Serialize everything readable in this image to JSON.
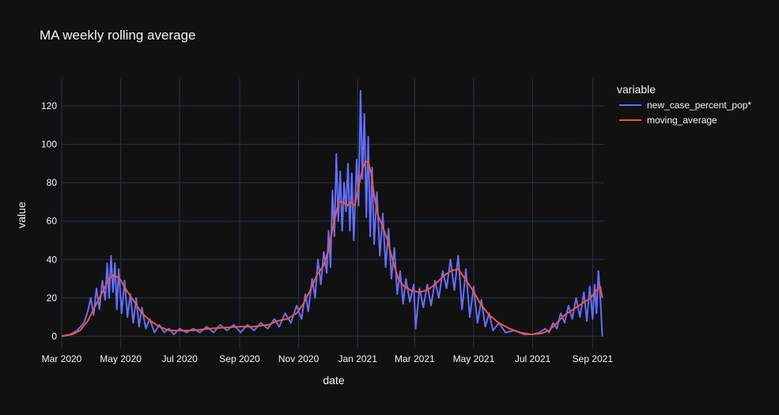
{
  "chart_data": {
    "type": "line",
    "title": "MA weekly rolling average",
    "xlabel": "date",
    "ylabel": "value",
    "xlim": [
      "2020-03-01",
      "2021-09-13"
    ],
    "ylim": [
      -6,
      134
    ],
    "x_ticks": [
      "2020-03-01",
      "2020-05-01",
      "2020-07-01",
      "2020-09-01",
      "2020-11-01",
      "2021-01-01",
      "2021-03-01",
      "2021-05-01",
      "2021-07-01",
      "2021-09-01"
    ],
    "x_tick_labels": [
      "Mar 2020",
      "May 2020",
      "Jul 2020",
      "Sep 2020",
      "Nov 2020",
      "Jan 2021",
      "Mar 2021",
      "May 2021",
      "Jul 2021",
      "Sep 2021"
    ],
    "y_ticks": [
      0,
      20,
      40,
      60,
      80,
      100,
      120
    ],
    "y_tick_labels": [
      "0",
      "20",
      "40",
      "60",
      "80",
      "100",
      "120"
    ],
    "grid": true,
    "legend": {
      "title": "variable",
      "position": "top-right"
    },
    "series": [
      {
        "name": "new_case_percent_pop*",
        "color": "#636efa",
        "points": [
          [
            "2020-03-01",
            0
          ],
          [
            "2020-03-10",
            1
          ],
          [
            "2020-03-17",
            3
          ],
          [
            "2020-03-24",
            7
          ],
          [
            "2020-03-28",
            13
          ],
          [
            "2020-03-31",
            20
          ],
          [
            "2020-04-03",
            11
          ],
          [
            "2020-04-06",
            25
          ],
          [
            "2020-04-09",
            14
          ],
          [
            "2020-04-12",
            29
          ],
          [
            "2020-04-15",
            19
          ],
          [
            "2020-04-17",
            38
          ],
          [
            "2020-04-19",
            20
          ],
          [
            "2020-04-21",
            42
          ],
          [
            "2020-04-23",
            23
          ],
          [
            "2020-04-25",
            38
          ],
          [
            "2020-04-27",
            14
          ],
          [
            "2020-04-29",
            35
          ],
          [
            "2020-05-02",
            12
          ],
          [
            "2020-05-05",
            29
          ],
          [
            "2020-05-08",
            10
          ],
          [
            "2020-05-11",
            22
          ],
          [
            "2020-05-14",
            7
          ],
          [
            "2020-05-17",
            20
          ],
          [
            "2020-05-20",
            5
          ],
          [
            "2020-05-23",
            15
          ],
          [
            "2020-05-27",
            4
          ],
          [
            "2020-05-31",
            9
          ],
          [
            "2020-06-05",
            2
          ],
          [
            "2020-06-10",
            6
          ],
          [
            "2020-06-15",
            2
          ],
          [
            "2020-06-20",
            4
          ],
          [
            "2020-06-25",
            1
          ],
          [
            "2020-07-01",
            4
          ],
          [
            "2020-07-08",
            2
          ],
          [
            "2020-07-15",
            4
          ],
          [
            "2020-07-22",
            2
          ],
          [
            "2020-07-29",
            5
          ],
          [
            "2020-08-05",
            2
          ],
          [
            "2020-08-12",
            6
          ],
          [
            "2020-08-19",
            3
          ],
          [
            "2020-08-26",
            6
          ],
          [
            "2020-09-02",
            2
          ],
          [
            "2020-09-09",
            6
          ],
          [
            "2020-09-16",
            3
          ],
          [
            "2020-09-23",
            7
          ],
          [
            "2020-09-30",
            4
          ],
          [
            "2020-10-07",
            9
          ],
          [
            "2020-10-12",
            5
          ],
          [
            "2020-10-18",
            12
          ],
          [
            "2020-10-24",
            7
          ],
          [
            "2020-10-30",
            16
          ],
          [
            "2020-11-04",
            9
          ],
          [
            "2020-11-08",
            22
          ],
          [
            "2020-11-11",
            13
          ],
          [
            "2020-11-15",
            30
          ],
          [
            "2020-11-18",
            20
          ],
          [
            "2020-11-21",
            40
          ],
          [
            "2020-11-24",
            27
          ],
          [
            "2020-11-27",
            44
          ],
          [
            "2020-11-30",
            33
          ],
          [
            "2020-12-02",
            55
          ],
          [
            "2020-12-04",
            36
          ],
          [
            "2020-12-06",
            76
          ],
          [
            "2020-12-08",
            52
          ],
          [
            "2020-12-10",
            95
          ],
          [
            "2020-12-12",
            60
          ],
          [
            "2020-12-14",
            86
          ],
          [
            "2020-12-16",
            55
          ],
          [
            "2020-12-18",
            80
          ],
          [
            "2020-12-20",
            65
          ],
          [
            "2020-12-22",
            90
          ],
          [
            "2020-12-24",
            55
          ],
          [
            "2020-12-26",
            85
          ],
          [
            "2020-12-28",
            50
          ],
          [
            "2020-12-31",
            92
          ],
          [
            "2021-01-02",
            68
          ],
          [
            "2021-01-04",
            128
          ],
          [
            "2021-01-06",
            82
          ],
          [
            "2021-01-08",
            116
          ],
          [
            "2021-01-10",
            62
          ],
          [
            "2021-01-12",
            104
          ],
          [
            "2021-01-14",
            52
          ],
          [
            "2021-01-16",
            88
          ],
          [
            "2021-01-18",
            48
          ],
          [
            "2021-01-21",
            75
          ],
          [
            "2021-01-24",
            42
          ],
          [
            "2021-01-27",
            64
          ],
          [
            "2021-01-30",
            36
          ],
          [
            "2021-02-02",
            56
          ],
          [
            "2021-02-05",
            30
          ],
          [
            "2021-02-08",
            46
          ],
          [
            "2021-02-11",
            22
          ],
          [
            "2021-02-14",
            34
          ],
          [
            "2021-02-17",
            17
          ],
          [
            "2021-02-20",
            30
          ],
          [
            "2021-02-24",
            18
          ],
          [
            "2021-02-28",
            27
          ],
          [
            "2021-03-02",
            4
          ],
          [
            "2021-03-06",
            25
          ],
          [
            "2021-03-10",
            15
          ],
          [
            "2021-03-14",
            27
          ],
          [
            "2021-03-18",
            16
          ],
          [
            "2021-03-22",
            29
          ],
          [
            "2021-03-26",
            20
          ],
          [
            "2021-03-30",
            34
          ],
          [
            "2021-04-03",
            25
          ],
          [
            "2021-04-07",
            40
          ],
          [
            "2021-04-11",
            24
          ],
          [
            "2021-04-15",
            42
          ],
          [
            "2021-04-19",
            14
          ],
          [
            "2021-04-23",
            35
          ],
          [
            "2021-04-27",
            10
          ],
          [
            "2021-05-01",
            26
          ],
          [
            "2021-05-05",
            7
          ],
          [
            "2021-05-09",
            19
          ],
          [
            "2021-05-13",
            5
          ],
          [
            "2021-05-17",
            12
          ],
          [
            "2021-05-21",
            3
          ],
          [
            "2021-05-27",
            7
          ],
          [
            "2021-06-03",
            2
          ],
          [
            "2021-06-12",
            3
          ],
          [
            "2021-06-22",
            1
          ],
          [
            "2021-07-01",
            1
          ],
          [
            "2021-07-08",
            2
          ],
          [
            "2021-07-14",
            4
          ],
          [
            "2021-07-18",
            2
          ],
          [
            "2021-07-22",
            7
          ],
          [
            "2021-07-26",
            4
          ],
          [
            "2021-07-30",
            12
          ],
          [
            "2021-08-03",
            7
          ],
          [
            "2021-08-07",
            16
          ],
          [
            "2021-08-11",
            9
          ],
          [
            "2021-08-15",
            20
          ],
          [
            "2021-08-19",
            10
          ],
          [
            "2021-08-23",
            23
          ],
          [
            "2021-08-26",
            8
          ],
          [
            "2021-08-29",
            26
          ],
          [
            "2021-09-01",
            9
          ],
          [
            "2021-09-03",
            27
          ],
          [
            "2021-09-05",
            12
          ],
          [
            "2021-09-07",
            34
          ],
          [
            "2021-09-09",
            20
          ],
          [
            "2021-09-11",
            0
          ]
        ]
      },
      {
        "name": "moving_average",
        "color": "#ef553b",
        "points": [
          [
            "2020-03-01",
            0
          ],
          [
            "2020-03-12",
            1
          ],
          [
            "2020-03-20",
            3
          ],
          [
            "2020-03-28",
            8
          ],
          [
            "2020-04-05",
            16
          ],
          [
            "2020-04-12",
            23
          ],
          [
            "2020-04-19",
            30
          ],
          [
            "2020-04-24",
            32
          ],
          [
            "2020-04-30",
            30
          ],
          [
            "2020-05-07",
            24
          ],
          [
            "2020-05-15",
            18
          ],
          [
            "2020-05-23",
            12
          ],
          [
            "2020-06-01",
            8
          ],
          [
            "2020-06-10",
            5
          ],
          [
            "2020-06-20",
            3
          ],
          [
            "2020-07-01",
            3
          ],
          [
            "2020-07-15",
            3
          ],
          [
            "2020-08-01",
            4
          ],
          [
            "2020-08-15",
            4.5
          ],
          [
            "2020-09-01",
            5
          ],
          [
            "2020-09-15",
            5
          ],
          [
            "2020-10-01",
            6
          ],
          [
            "2020-10-10",
            8
          ],
          [
            "2020-10-20",
            9
          ],
          [
            "2020-10-30",
            12
          ],
          [
            "2020-11-06",
            17
          ],
          [
            "2020-11-13",
            24
          ],
          [
            "2020-11-20",
            32
          ],
          [
            "2020-11-27",
            37
          ],
          [
            "2020-12-02",
            45
          ],
          [
            "2020-12-06",
            56
          ],
          [
            "2020-12-10",
            65
          ],
          [
            "2020-12-13",
            70
          ],
          [
            "2020-12-17",
            70
          ],
          [
            "2020-12-21",
            68
          ],
          [
            "2020-12-25",
            70
          ],
          [
            "2020-12-29",
            68
          ],
          [
            "2021-01-02",
            78
          ],
          [
            "2021-01-06",
            87
          ],
          [
            "2021-01-09",
            91
          ],
          [
            "2021-01-12",
            91
          ],
          [
            "2021-01-15",
            85
          ],
          [
            "2021-01-18",
            74
          ],
          [
            "2021-01-22",
            63
          ],
          [
            "2021-01-27",
            57
          ],
          [
            "2021-02-01",
            50
          ],
          [
            "2021-02-06",
            40
          ],
          [
            "2021-02-12",
            30
          ],
          [
            "2021-02-18",
            26
          ],
          [
            "2021-02-25",
            24
          ],
          [
            "2021-03-05",
            23
          ],
          [
            "2021-03-14",
            24
          ],
          [
            "2021-03-22",
            27
          ],
          [
            "2021-03-30",
            31
          ],
          [
            "2021-04-07",
            34
          ],
          [
            "2021-04-15",
            35
          ],
          [
            "2021-04-22",
            30
          ],
          [
            "2021-04-30",
            24
          ],
          [
            "2021-05-08",
            17
          ],
          [
            "2021-05-17",
            11
          ],
          [
            "2021-05-27",
            7
          ],
          [
            "2021-06-07",
            4
          ],
          [
            "2021-06-18",
            2
          ],
          [
            "2021-06-30",
            1
          ],
          [
            "2021-07-10",
            1.5
          ],
          [
            "2021-07-18",
            3
          ],
          [
            "2021-07-26",
            7
          ],
          [
            "2021-08-03",
            11
          ],
          [
            "2021-08-12",
            14
          ],
          [
            "2021-08-21",
            17
          ],
          [
            "2021-08-30",
            20
          ],
          [
            "2021-09-05",
            24
          ],
          [
            "2021-09-09",
            26
          ],
          [
            "2021-09-11",
            20
          ]
        ]
      }
    ]
  }
}
